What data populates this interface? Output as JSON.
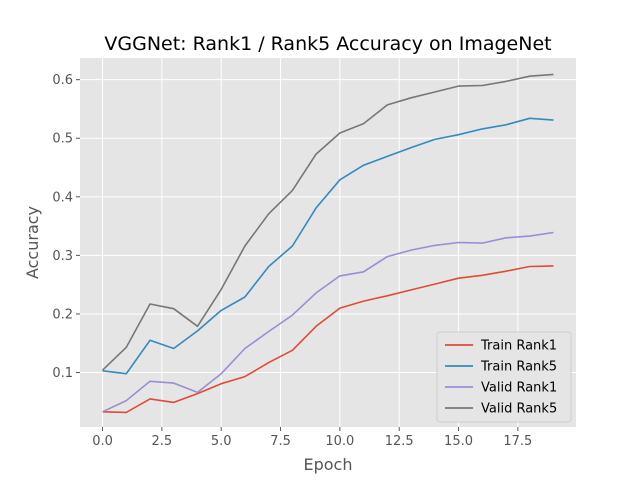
{
  "chart_data": {
    "type": "line",
    "title": "VGGNet: Rank1 / Rank5 Accuracy on ImageNet",
    "xlabel": "Epoch",
    "ylabel": "Accuracy",
    "xlim": [
      -0.95,
      19.95
    ],
    "ylim": [
      0.007,
      0.637
    ],
    "xticks": [
      0.0,
      2.5,
      5.0,
      7.5,
      10.0,
      12.5,
      15.0,
      17.5
    ],
    "xtick_labels": [
      "0.0",
      "2.5",
      "5.0",
      "7.5",
      "10.0",
      "12.5",
      "15.0",
      "17.5"
    ],
    "yticks": [
      0.1,
      0.2,
      0.3,
      0.4,
      0.5,
      0.6
    ],
    "ytick_labels": [
      "0.1",
      "0.2",
      "0.3",
      "0.4",
      "0.5",
      "0.6"
    ],
    "grid": true,
    "legend_position": "bottom-right",
    "x": [
      0,
      1,
      2,
      3,
      4,
      5,
      6,
      7,
      8,
      9,
      10,
      11,
      12,
      13,
      14,
      15,
      16,
      17,
      18,
      19
    ],
    "series": [
      {
        "name": "Train Rank1",
        "color": "#E24A33",
        "values": [
          0.033,
          0.032,
          0.055,
          0.049,
          0.064,
          0.081,
          0.093,
          0.117,
          0.138,
          0.179,
          0.21,
          0.222,
          0.231,
          0.241,
          0.251,
          0.261,
          0.266,
          0.273,
          0.281,
          0.282
        ]
      },
      {
        "name": "Train Rank5",
        "color": "#348ABD",
        "values": [
          0.103,
          0.098,
          0.155,
          0.141,
          0.171,
          0.206,
          0.229,
          0.281,
          0.316,
          0.381,
          0.429,
          0.454,
          0.469,
          0.484,
          0.498,
          0.506,
          0.516,
          0.523,
          0.534,
          0.531
        ]
      },
      {
        "name": "Valid Rank1",
        "color": "#988ED5",
        "values": [
          0.033,
          0.052,
          0.085,
          0.082,
          0.066,
          0.098,
          0.141,
          0.17,
          0.198,
          0.236,
          0.265,
          0.272,
          0.298,
          0.309,
          0.317,
          0.322,
          0.321,
          0.33,
          0.333,
          0.339
        ]
      },
      {
        "name": "Valid Rank5",
        "color": "#777777",
        "values": [
          0.104,
          0.143,
          0.217,
          0.209,
          0.179,
          0.242,
          0.316,
          0.371,
          0.411,
          0.473,
          0.509,
          0.525,
          0.557,
          0.569,
          0.579,
          0.589,
          0.59,
          0.597,
          0.606,
          0.609
        ]
      }
    ]
  }
}
